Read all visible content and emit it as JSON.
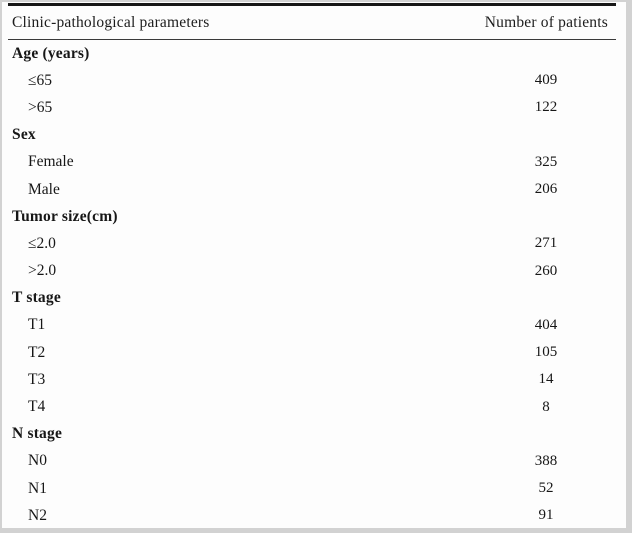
{
  "table": {
    "header": {
      "parameter": "Clinic-pathological parameters",
      "count": "Number of patients"
    },
    "sections": [
      {
        "label": "Age (years)",
        "rows": [
          {
            "label": "≤65",
            "value": "409"
          },
          {
            "label": ">65",
            "value": "122"
          }
        ]
      },
      {
        "label": "Sex",
        "rows": [
          {
            "label": "Female",
            "value": "325"
          },
          {
            "label": "Male",
            "value": "206"
          }
        ]
      },
      {
        "label": "Tumor size(cm)",
        "rows": [
          {
            "label": "≤2.0",
            "value": "271"
          },
          {
            "label": ">2.0",
            "value": "260"
          }
        ]
      },
      {
        "label": "T stage",
        "rows": [
          {
            "label": "T1",
            "value": "404"
          },
          {
            "label": "T2",
            "value": "105"
          },
          {
            "label": "T3",
            "value": "14"
          },
          {
            "label": "T4",
            "value": "8"
          }
        ]
      },
      {
        "label": "N stage",
        "rows": [
          {
            "label": "N0",
            "value": "388"
          },
          {
            "label": "N1",
            "value": "52"
          },
          {
            "label": "N2",
            "value": "91"
          }
        ]
      }
    ]
  },
  "colors": {
    "page_background": "#fdfdfd",
    "frame_border": "#d2d2d2",
    "text": "#171717",
    "rule_thick": "#171717",
    "rule_thin": "#3a3a3a"
  }
}
